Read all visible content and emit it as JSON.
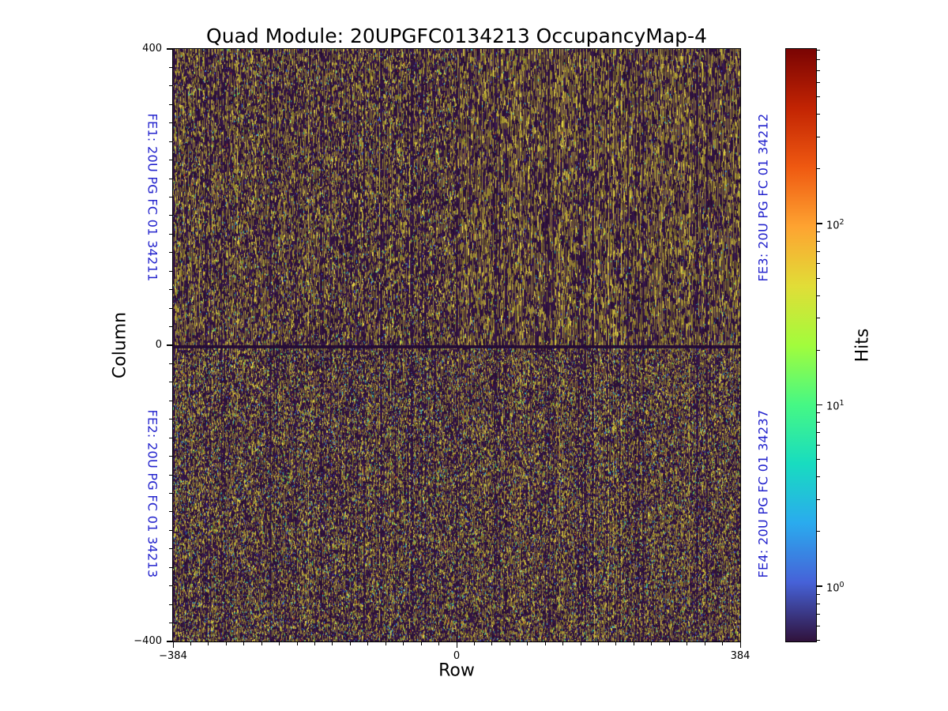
{
  "chart_data": {
    "type": "heatmap",
    "title": "Quad Module: 20UPGFC0134213 OccupancyMap-4",
    "xlabel": "Row",
    "ylabel": "Column",
    "x_range": [
      -384,
      384
    ],
    "y_range": [
      -400,
      400
    ],
    "grid": false,
    "description": "Pixel occupancy hit map of a 768x800 quad detector module; four front-end chip quadrants rendered as dense vertical-striped pseudo-random noise (dark purple background with olive/yellow stripes and blue/cyan/green speckles), dark separator band at Column 0.",
    "x_ticks": [
      {
        "label": "−384",
        "frac": 0
      },
      {
        "label": "0",
        "frac": 0.5
      },
      {
        "label": "384",
        "frac": 1
      }
    ],
    "y_ticks": [
      {
        "label": "400",
        "frac": 0
      },
      {
        "label": "0",
        "frac": 0.5
      },
      {
        "label": "−400",
        "frac": 1
      }
    ],
    "x_minor_divisions": 32,
    "y_minor_divisions": 32,
    "annotations": {
      "color": "#2323cd",
      "items": [
        {
          "id": "fe1",
          "text": "FE1: 20U PG FC 01 34211",
          "position": "top-left"
        },
        {
          "id": "fe2",
          "text": "FE2: 20U PG FC 01 34213",
          "position": "bottom-left"
        },
        {
          "id": "fe4",
          "text": "FE4: 20U PG FC 01 34237",
          "position": "top-right"
        },
        {
          "id": "fe3",
          "text": "FE3: 20U PG FC 01 34212",
          "position": "bottom-right"
        }
      ]
    },
    "colorbar": {
      "label": "Hits",
      "scale": "log",
      "vmin": 0.495,
      "vmax": 918,
      "colormap": "turbo",
      "major_ticks": [
        {
          "value": 1,
          "base": "10",
          "exp": "0"
        },
        {
          "value": 10,
          "base": "10",
          "exp": "1"
        },
        {
          "value": 100,
          "base": "10",
          "exp": "2"
        }
      ],
      "minor_mantissas": [
        2,
        3,
        4,
        5,
        6,
        7,
        8,
        9
      ],
      "gradient": [
        [
          0.0,
          "#30123b"
        ],
        [
          0.1,
          "#4662d8"
        ],
        [
          0.2,
          "#2aabee"
        ],
        [
          0.3,
          "#18dcc0"
        ],
        [
          0.4,
          "#46f884"
        ],
        [
          0.5,
          "#a2fc3c"
        ],
        [
          0.6,
          "#e1dd37"
        ],
        [
          0.7,
          "#fea331"
        ],
        [
          0.8,
          "#ef5911"
        ],
        [
          0.9,
          "#c22403"
        ],
        [
          1.0,
          "#7a0403"
        ]
      ]
    },
    "texture": {
      "seed": 1337,
      "dark": [
        "#2c1038",
        "#341445",
        "#260e31",
        "#3a1a4c",
        "#2f1240"
      ],
      "olive": [
        "#8a7a2c",
        "#97862f",
        "#7c6d26",
        "#a28f38",
        "#8b6f3a",
        "#94823a"
      ],
      "bright": [
        "#d9c83e",
        "#e6d447",
        "#cdbb3c"
      ],
      "speckles": [
        [
          "#e2d04a",
          0.26
        ],
        [
          "#3c4ed2",
          0.17
        ],
        [
          "#33b7d4",
          0.15
        ],
        [
          "#42c462",
          0.13
        ],
        [
          "#2aa88e",
          0.12
        ],
        [
          "#d08030",
          0.07
        ],
        [
          "#a0d840",
          0.06
        ],
        [
          "#c03818",
          0.04
        ]
      ],
      "mid_band": {
        "row_start": 375,
        "row_end": 378,
        "colors": [
          "#230b33",
          "#2a0f3b"
        ]
      },
      "quadrants": {
        "top_left": {
          "olive": 0.5,
          "speckle": 0.1,
          "run_min": 2,
          "run_max": 6
        },
        "top_right": {
          "olive": 0.58,
          "speckle": 0.08,
          "run_min": 3,
          "run_max": 9
        },
        "bottom_left": {
          "olive": 0.44,
          "speckle": 0.13,
          "run_min": 1,
          "run_max": 4
        },
        "bottom_right": {
          "olive": 0.47,
          "speckle": 0.12,
          "run_min": 1,
          "run_max": 4
        }
      },
      "dark_col_prob": 0.1,
      "bright_col_prob": 0.05,
      "stripe_even_factor": 0.45,
      "center_col": 359,
      "core_period": 64
    }
  }
}
